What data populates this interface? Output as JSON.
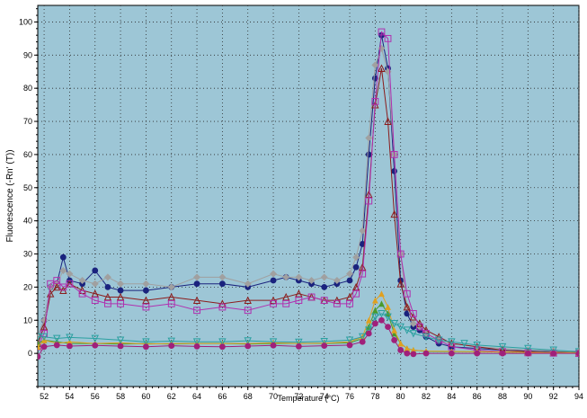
{
  "chart_data": {
    "type": "line",
    "xlabel": "Temperature (°C)",
    "ylabel": "Fluorescence (-Rn' (T))",
    "xlim": [
      51.5,
      94
    ],
    "ylim": [
      -10,
      105
    ],
    "x_ticks": [
      "52",
      "54",
      "56",
      "58",
      "60",
      "62",
      "64",
      "66",
      "68",
      "70",
      "72",
      "74",
      "76",
      "78",
      "80",
      "82",
      "84",
      "86",
      "88",
      "90",
      "92",
      "94"
    ],
    "y_ticks": [
      "0",
      "10",
      "20",
      "30",
      "40",
      "50",
      "60",
      "70",
      "80",
      "90",
      "100"
    ],
    "grid": true,
    "legend": "none",
    "plot_background": "#9dc6d6",
    "series": [
      {
        "color": "#1a237e",
        "marker": "circle-filled",
        "x": [
          51.5,
          52,
          52.5,
          53,
          53.5,
          54,
          55,
          56,
          57,
          58,
          60,
          62,
          64,
          66,
          68,
          70,
          71,
          72,
          73,
          74,
          75,
          76,
          76.5,
          77,
          77.5,
          78,
          78.5,
          79,
          79.5,
          80,
          80.5,
          81,
          81.5,
          82,
          83,
          84,
          86,
          88,
          90,
          92,
          94
        ],
        "y": [
          5,
          10,
          20,
          21,
          29,
          22,
          21,
          25,
          20,
          19,
          19,
          20,
          21,
          21,
          20,
          22,
          23,
          22,
          21,
          20,
          21,
          22,
          26,
          33,
          60,
          83,
          96,
          86,
          55,
          22,
          12,
          8,
          7,
          5,
          3,
          2,
          1.5,
          1,
          0.7,
          0.5,
          0.3
        ]
      },
      {
        "color": "#a0a0a0",
        "marker": "diamond-filled",
        "x": [
          51.5,
          52,
          52.5,
          53,
          53.5,
          54,
          55,
          56,
          57,
          58,
          60,
          62,
          64,
          66,
          68,
          70,
          71,
          72,
          73,
          74,
          75,
          76,
          76.5,
          77,
          77.5,
          78,
          78.5,
          79,
          79.5,
          80,
          80.5,
          81,
          81.5,
          82,
          83,
          84,
          86,
          88,
          90,
          92,
          94
        ],
        "y": [
          5,
          10,
          20,
          21,
          25,
          24,
          22,
          21,
          23,
          21,
          21,
          20,
          23,
          23,
          21,
          24,
          23,
          23,
          22,
          23,
          22,
          24,
          29,
          37,
          65,
          87,
          92,
          85,
          60,
          30,
          14,
          9,
          8,
          6,
          4,
          3,
          2,
          1.5,
          1,
          0.8,
          0.6
        ]
      },
      {
        "color": "#8b1c1c",
        "marker": "triangle-open",
        "x": [
          51.5,
          52,
          52.5,
          53,
          53.5,
          54,
          55,
          56,
          57,
          58,
          60,
          62,
          64,
          66,
          68,
          70,
          71,
          72,
          73,
          74,
          75,
          76,
          76.5,
          77,
          77.5,
          78,
          78.5,
          79,
          79.5,
          80,
          80.5,
          81,
          81.5,
          82,
          83,
          84,
          86,
          88,
          90,
          92,
          94
        ],
        "y": [
          3,
          8,
          18,
          20,
          19,
          21,
          19,
          18,
          17,
          17,
          16,
          17,
          16,
          15,
          16,
          16,
          17,
          18,
          17,
          16,
          16,
          17,
          20,
          26,
          48,
          75,
          86,
          70,
          42,
          21,
          14,
          11,
          9,
          7,
          5,
          3,
          2,
          1,
          0.5,
          0.2,
          0
        ]
      },
      {
        "color": "#b030b0",
        "marker": "square-open",
        "x": [
          51.5,
          52,
          52.5,
          53,
          53.5,
          54,
          55,
          56,
          57,
          58,
          60,
          62,
          64,
          66,
          68,
          70,
          71,
          72,
          73,
          74,
          75,
          76,
          76.5,
          77,
          77.5,
          78,
          78.5,
          79,
          79.5,
          80,
          80.5,
          81,
          81.5,
          82,
          83,
          84,
          86,
          88,
          90,
          92,
          94
        ],
        "y": [
          2,
          6,
          21,
          22,
          20,
          21,
          18,
          16,
          15,
          15,
          14,
          15,
          13,
          14,
          13,
          15,
          15,
          16,
          17,
          16,
          15,
          15,
          18,
          24,
          46,
          76,
          97,
          95,
          60,
          30,
          18,
          12,
          8,
          6,
          4,
          2,
          1,
          0.5,
          0.2,
          0.1,
          0
        ]
      },
      {
        "color": "#4a9a2c",
        "marker": "triangle-filled",
        "x": [
          51.5,
          52,
          53,
          54,
          56,
          58,
          60,
          62,
          64,
          66,
          68,
          70,
          72,
          74,
          76,
          77,
          77.5,
          78,
          78.5,
          79,
          79.5,
          80,
          80.5,
          81,
          82,
          84,
          86,
          88,
          90,
          92,
          94
        ],
        "y": [
          3,
          4,
          3.5,
          3,
          3,
          2.8,
          3,
          2.8,
          3,
          3,
          2.8,
          3,
          3,
          3,
          3.2,
          4.5,
          8,
          13,
          15,
          12,
          6,
          3,
          1.5,
          1,
          0.6,
          0.5,
          0.5,
          0.4,
          0.3,
          0.3,
          0.2
        ]
      },
      {
        "color": "#e0a020",
        "marker": "triangle-filled",
        "x": [
          51.5,
          52,
          53,
          54,
          56,
          58,
          60,
          62,
          64,
          66,
          68,
          70,
          72,
          74,
          76,
          77,
          77.5,
          78,
          78.5,
          79,
          79.5,
          80,
          80.5,
          81,
          82,
          84,
          86,
          88,
          90,
          92,
          94
        ],
        "y": [
          2,
          4,
          3,
          3.5,
          3,
          3.2,
          2.8,
          3,
          3,
          3,
          3,
          3.2,
          3,
          3.1,
          3.5,
          5,
          10,
          16,
          18,
          14,
          7,
          3,
          1.5,
          1,
          0.7,
          0.6,
          0.5,
          0.4,
          0.3,
          0.3,
          0.2
        ]
      },
      {
        "color": "#2aa0a0",
        "marker": "triangle-down-open",
        "x": [
          51.5,
          52,
          53,
          54,
          56,
          58,
          60,
          62,
          64,
          66,
          68,
          70,
          72,
          74,
          76,
          77,
          77.5,
          78,
          78.5,
          79,
          79.5,
          80,
          80.5,
          81,
          82,
          83,
          84,
          85,
          86,
          88,
          90,
          92,
          94
        ],
        "y": [
          5,
          5,
          4.5,
          4.8,
          4.5,
          4,
          3.5,
          3.7,
          3.5,
          3.5,
          3.8,
          3.5,
          3.4,
          3.6,
          4,
          5,
          7,
          11,
          12,
          11,
          9,
          8,
          7,
          6,
          5,
          4,
          3.5,
          3,
          2.5,
          2,
          1.5,
          1,
          0.5
        ]
      },
      {
        "color": "#a0207a",
        "marker": "circle-filled",
        "x": [
          51.5,
          52,
          53,
          54,
          56,
          58,
          60,
          62,
          64,
          66,
          68,
          70,
          72,
          74,
          76,
          77,
          77.5,
          78,
          78.5,
          79,
          79.5,
          80,
          80.5,
          81,
          82,
          84,
          86,
          88,
          90,
          92,
          94
        ],
        "y": [
          -1,
          2,
          2.5,
          2.2,
          2.4,
          2.2,
          2,
          2.3,
          2.1,
          2,
          2.2,
          2.4,
          2.1,
          2.3,
          2.5,
          3.5,
          6,
          9,
          10,
          8,
          4,
          1,
          0,
          -0.2,
          0,
          0,
          0,
          0,
          0,
          0,
          0
        ]
      }
    ]
  }
}
